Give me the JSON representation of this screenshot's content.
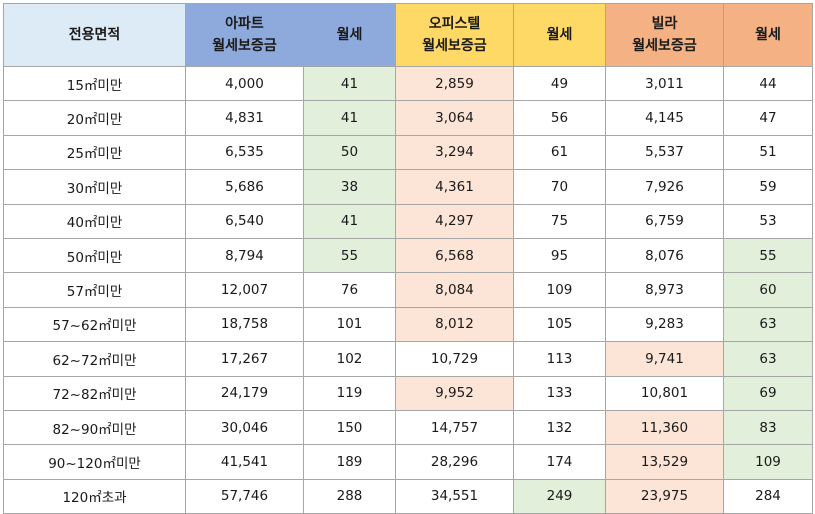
{
  "header": {
    "area": "전용면적",
    "apt_line1": "아파트",
    "apt_line2": "월세보증금",
    "apt_rent": "월세",
    "off_line1": "오피스텔",
    "off_line2": "월세보증금",
    "off_rent": "월세",
    "vil_line1": "빌라",
    "vil_line2": "월세보증금",
    "vil_rent": "월세"
  },
  "colors": {
    "area_header": "#ddebf7",
    "apt_header": "#8ea9db",
    "off_header": "#ffd966",
    "vil_header": "#f4b183",
    "highlight_green": "#e2efda",
    "highlight_peach": "#fce4d6"
  },
  "rows": [
    {
      "area": "15㎡미만",
      "apt_dep": "4,000",
      "apt_rent": "41",
      "off_dep": "2,859",
      "off_rent": "49",
      "vil_dep": "3,011",
      "vil_rent": "44"
    },
    {
      "area": "20㎡미만",
      "apt_dep": "4,831",
      "apt_rent": "41",
      "off_dep": "3,064",
      "off_rent": "56",
      "vil_dep": "4,145",
      "vil_rent": "47"
    },
    {
      "area": "25㎡미만",
      "apt_dep": "6,535",
      "apt_rent": "50",
      "off_dep": "3,294",
      "off_rent": "61",
      "vil_dep": "5,537",
      "vil_rent": "51"
    },
    {
      "area": "30㎡미만",
      "apt_dep": "5,686",
      "apt_rent": "38",
      "off_dep": "4,361",
      "off_rent": "70",
      "vil_dep": "7,926",
      "vil_rent": "59"
    },
    {
      "area": "40㎡미만",
      "apt_dep": "6,540",
      "apt_rent": "41",
      "off_dep": "4,297",
      "off_rent": "75",
      "vil_dep": "6,759",
      "vil_rent": "53"
    },
    {
      "area": "50㎡미만",
      "apt_dep": "8,794",
      "apt_rent": "55",
      "off_dep": "6,568",
      "off_rent": "95",
      "vil_dep": "8,076",
      "vil_rent": "55"
    },
    {
      "area": "57㎡미만",
      "apt_dep": "12,007",
      "apt_rent": "76",
      "off_dep": "8,084",
      "off_rent": "109",
      "vil_dep": "8,973",
      "vil_rent": "60"
    },
    {
      "area": "57~62㎡미만",
      "apt_dep": "18,758",
      "apt_rent": "101",
      "off_dep": "8,012",
      "off_rent": "105",
      "vil_dep": "9,283",
      "vil_rent": "63"
    },
    {
      "area": "62~72㎡미만",
      "apt_dep": "17,267",
      "apt_rent": "102",
      "off_dep": "10,729",
      "off_rent": "113",
      "vil_dep": "9,741",
      "vil_rent": "63"
    },
    {
      "area": "72~82㎡미만",
      "apt_dep": "24,179",
      "apt_rent": "119",
      "off_dep": "9,952",
      "off_rent": "133",
      "vil_dep": "10,801",
      "vil_rent": "69"
    },
    {
      "area": "82~90㎡미만",
      "apt_dep": "30,046",
      "apt_rent": "150",
      "off_dep": "14,757",
      "off_rent": "132",
      "vil_dep": "11,360",
      "vil_rent": "83"
    },
    {
      "area": "90~120㎡미만",
      "apt_dep": "41,541",
      "apt_rent": "189",
      "off_dep": "28,296",
      "off_rent": "174",
      "vil_dep": "13,529",
      "vil_rent": "109"
    },
    {
      "area": "120㎡초과",
      "apt_dep": "57,746",
      "apt_rent": "288",
      "off_dep": "34,551",
      "off_rent": "249",
      "vil_dep": "23,975",
      "vil_rent": "284"
    }
  ]
}
